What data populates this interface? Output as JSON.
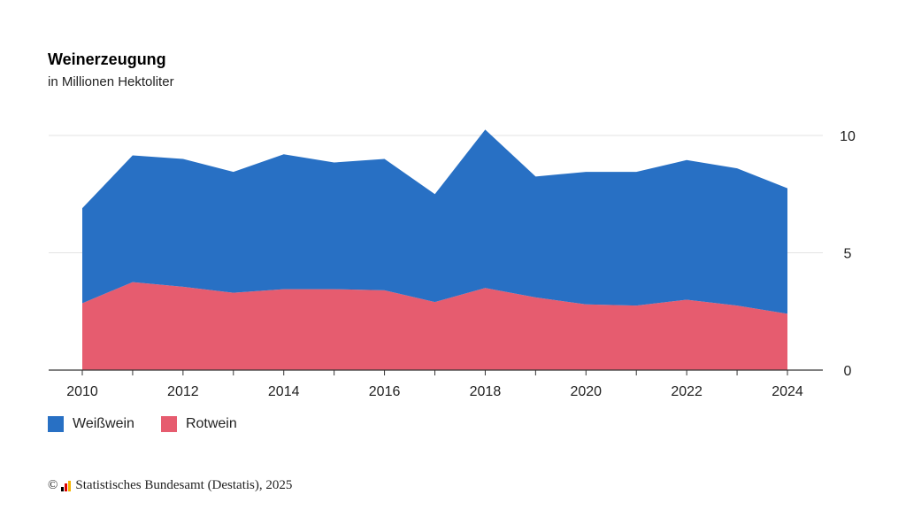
{
  "header": {
    "title": "Weinerzeugung",
    "subtitle": "in Millionen Hektoliter"
  },
  "chart_data": {
    "type": "area",
    "stacked": true,
    "x": [
      2010,
      2011,
      2012,
      2013,
      2014,
      2015,
      2016,
      2017,
      2018,
      2019,
      2020,
      2021,
      2022,
      2023,
      2024
    ],
    "x_tick_labels": [
      "2010",
      "2012",
      "2014",
      "2016",
      "2018",
      "2020",
      "2022",
      "2024"
    ],
    "y_tick_labels": [
      "0",
      "5",
      "10"
    ],
    "ylim": [
      0,
      10
    ],
    "y_axis_position": "right",
    "grid": true,
    "legend_position": "bottom-left",
    "series": [
      {
        "name": "Rotwein",
        "color": "#e65c6f",
        "values": [
          2.85,
          3.75,
          3.55,
          3.3,
          3.45,
          3.45,
          3.4,
          2.9,
          3.5,
          3.1,
          2.8,
          2.75,
          3.0,
          2.75,
          2.4
        ]
      },
      {
        "name": "Weißwein",
        "color": "#2870c4",
        "values": [
          4.05,
          5.4,
          5.45,
          5.15,
          5.75,
          5.4,
          5.6,
          4.6,
          6.75,
          5.15,
          5.65,
          5.7,
          5.95,
          5.85,
          5.35
        ]
      }
    ]
  },
  "legend": {
    "items": [
      {
        "label": "Weißwein",
        "color": "#2870c4"
      },
      {
        "label": "Rotwein",
        "color": "#e65c6f"
      }
    ]
  },
  "footer": {
    "copyright_symbol": "©",
    "source": "Statistisches Bundesamt (Destatis), 2025"
  }
}
